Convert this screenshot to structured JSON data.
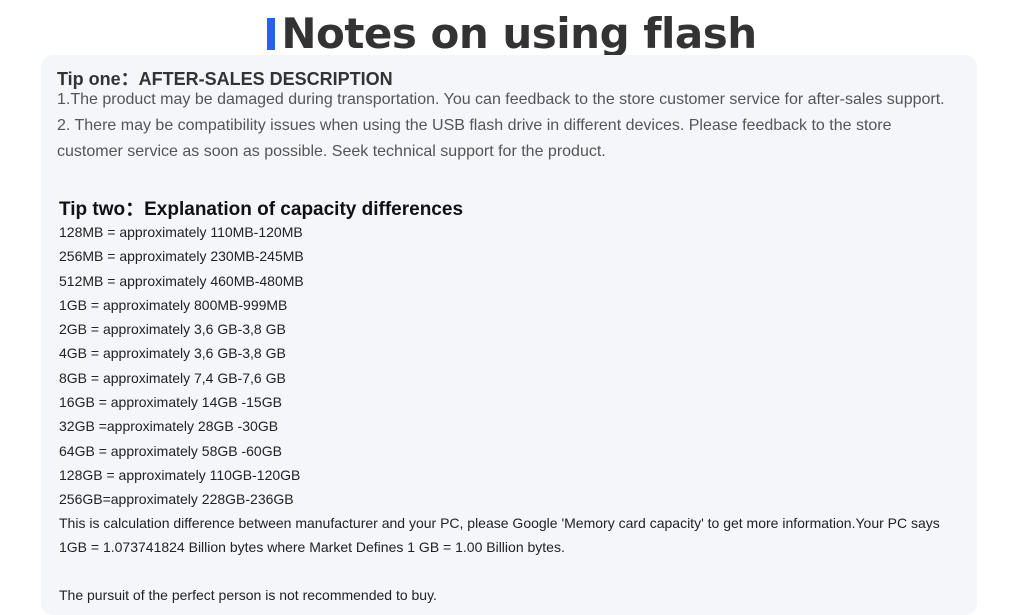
{
  "title": "Notes on using flash",
  "accent_color": "#2563eb",
  "tip_one": {
    "heading": "Tip one：AFTER-SALES DESCRIPTION",
    "paragraphs": [
      "1.The product may be damaged during transportation. You can feedback to the store customer service for after-sales support.",
      "2. There may be compatibility issues when using the USB flash drive in different devices. Please feedback to the store customer service as soon as possible. Seek technical support for the product."
    ]
  },
  "tip_two": {
    "heading": "Tip two：Explanation of capacity differences",
    "items": [
      "128MB = approximately 110MB-120MB",
      "256MB = approximately 230MB-245MB",
      "512MB = approximately 460MB-480MB",
      "1GB = approximately 800MB-999MB",
      "2GB = approximately 3,6 GB-3,8 GB",
      "4GB = approximately 3,6 GB-3,8 GB",
      "8GB = approximately 7,4 GB-7,6 GB",
      "16GB = approximately 14GB -15GB",
      "32GB =approximately 28GB -30GB",
      "64GB = approximately 58GB -60GB",
      "128GB = approximately 110GB-120GB",
      "256GB=approximately 228GB-236GB"
    ],
    "note_1": "This is calculation difference between manufacturer and your PC, please Google 'Memory card capacity' to get more information.Your PC says",
    "note_2": "1GB = 1.073741824 Billion bytes where Market Defines 1 GB = 1.00 Billion bytes.",
    "note_3": "The pursuit of the perfect person is not recommended to buy."
  }
}
